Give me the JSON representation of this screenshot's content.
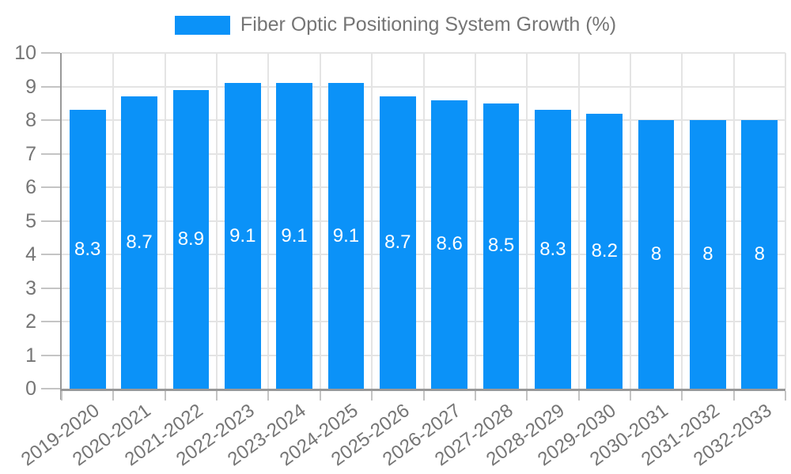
{
  "chart_data": {
    "type": "bar",
    "title": "Fiber Optic Positioning System Growth (%)",
    "categories": [
      "2019-2020",
      "2020-2021",
      "2021-2022",
      "2022-2023",
      "2023-2024",
      "2024-2025",
      "2025-2026",
      "2026-2027",
      "2027-2028",
      "2028-2029",
      "2029-2030",
      "2030-2031",
      "2031-2032",
      "2032-2033"
    ],
    "values": [
      8.3,
      8.7,
      8.9,
      9.1,
      9.1,
      9.1,
      8.7,
      8.6,
      8.5,
      8.3,
      8.2,
      8,
      8,
      8
    ],
    "value_labels": [
      "8.3",
      "8.7",
      "8.9",
      "9.1",
      "9.1",
      "9.1",
      "8.7",
      "8.6",
      "8.5",
      "8.3",
      "8.2",
      "8",
      "8",
      "8"
    ],
    "xlabel": "",
    "ylabel": "",
    "ylim": [
      0,
      10
    ],
    "y_tick_step": 1,
    "y_tick_labels": [
      "0",
      "1",
      "2",
      "3",
      "4",
      "5",
      "6",
      "7",
      "8",
      "9",
      "10"
    ],
    "grid": true,
    "legend_position": "top",
    "colors": {
      "bar": "#0b92f8",
      "value_label": "#ffffff",
      "axis_text": "#757575",
      "grid": "#e4e4e4",
      "axis_line": "#999999",
      "tick": "#c4c4c4",
      "background": "#ffffff"
    }
  }
}
